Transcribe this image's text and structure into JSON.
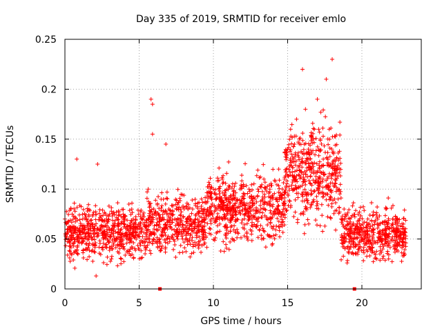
{
  "chart_data": {
    "type": "scatter",
    "title": "Day 335 of 2019, SRMTID for receiver emlo",
    "xlabel": "GPS time / hours",
    "ylabel": "SRMTID / TECUs",
    "xlim": [
      0,
      24
    ],
    "ylim": [
      0,
      0.25
    ],
    "xticks": [
      0,
      5,
      10,
      15,
      20
    ],
    "xtick_labels": [
      "0",
      "5",
      "10",
      "15",
      "20"
    ],
    "yticks": [
      0,
      0.05,
      0.1,
      0.15,
      0.2,
      0.25
    ],
    "ytick_labels": [
      "0",
      "0.05",
      "0.1",
      "0.15",
      "0.2",
      "0.25"
    ],
    "grid": true,
    "marker": "+",
    "color": "#ff0000",
    "series": [
      {
        "name": "SRMTID",
        "x": [
          0.0,
          0.2,
          0.4,
          0.5,
          0.6,
          0.8,
          1.0,
          1.2,
          1.4,
          1.6,
          1.8,
          2.0,
          2.1,
          2.2,
          2.4,
          2.6,
          2.8,
          3.0,
          3.2,
          3.4,
          3.6,
          3.8,
          4.0,
          4.2,
          4.4,
          4.6,
          4.8,
          5.0,
          5.2,
          5.4,
          5.6,
          5.8,
          5.9,
          5.9,
          6.0,
          6.2,
          6.4,
          6.6,
          6.8,
          6.9,
          7.0,
          7.2,
          7.4,
          7.6,
          7.8,
          8.0,
          8.2,
          8.4,
          8.6,
          8.8,
          9.0,
          9.2,
          9.4,
          9.6,
          9.8,
          10.0,
          10.2,
          10.4,
          10.6,
          10.8,
          11.0,
          11.2,
          11.4,
          11.6,
          11.8,
          12.0,
          12.2,
          12.4,
          12.6,
          12.8,
          13.0,
          13.2,
          13.4,
          13.6,
          13.8,
          14.0,
          14.2,
          14.4,
          14.6,
          14.8,
          15.0,
          15.2,
          15.4,
          15.6,
          15.8,
          16.0,
          16.2,
          16.4,
          16.6,
          16.8,
          17.0,
          17.2,
          17.4,
          17.6,
          17.8,
          18.0,
          18.2,
          18.4,
          18.6,
          18.8,
          19.0,
          19.2,
          19.4,
          19.6,
          19.8,
          20.0,
          20.2,
          20.4,
          20.6,
          20.8,
          21.0,
          21.2,
          21.4,
          21.6,
          21.8,
          22.0,
          22.2,
          22.4,
          22.6,
          22.8
        ],
        "y": [
          0.07,
          0.06,
          0.08,
          0.05,
          0.06,
          0.13,
          0.05,
          0.07,
          0.04,
          0.06,
          0.05,
          0.06,
          0.013,
          0.125,
          0.06,
          0.05,
          0.07,
          0.06,
          0.04,
          0.05,
          0.06,
          0.05,
          0.04,
          0.06,
          0.05,
          0.07,
          0.05,
          0.04,
          0.06,
          0.05,
          0.07,
          0.19,
          0.185,
          0.155,
          0.06,
          0.07,
          0.05,
          0.07,
          0.145,
          0.06,
          0.08,
          0.06,
          0.07,
          0.05,
          0.08,
          0.06,
          0.07,
          0.05,
          0.08,
          0.07,
          0.06,
          0.09,
          0.07,
          0.08,
          0.06,
          0.1,
          0.09,
          0.07,
          0.11,
          0.08,
          0.1,
          0.09,
          0.08,
          0.07,
          0.1,
          0.09,
          0.08,
          0.1,
          0.07,
          0.09,
          0.1,
          0.08,
          0.11,
          0.07,
          0.1,
          0.09,
          0.08,
          0.12,
          0.09,
          0.11,
          0.14,
          0.16,
          0.13,
          0.17,
          0.15,
          0.22,
          0.18,
          0.14,
          0.12,
          0.16,
          0.19,
          0.15,
          0.13,
          0.21,
          0.16,
          0.23,
          0.12,
          0.09,
          0.07,
          0.08,
          0.06,
          0.07,
          0.05,
          0.06,
          0.04,
          0.06,
          0.05,
          0.07,
          0.04,
          0.06,
          0.03,
          0.05,
          0.04,
          0.06,
          0.03,
          0.05,
          0.04,
          0.07,
          0.05,
          0.06
        ],
        "bands": [
          {
            "x_range": [
              0,
              5.5
            ],
            "y_mean": 0.057,
            "y_spread": 0.026,
            "count": 600
          },
          {
            "x_range": [
              5.5,
              9.5
            ],
            "y_mean": 0.065,
            "y_spread": 0.028,
            "count": 420
          },
          {
            "x_range": [
              9.5,
              14.8
            ],
            "y_mean": 0.08,
            "y_spread": 0.032,
            "count": 560
          },
          {
            "x_range": [
              14.8,
              18.6
            ],
            "y_mean": 0.115,
            "y_spread": 0.045,
            "count": 480
          },
          {
            "x_range": [
              18.6,
              23
            ],
            "y_mean": 0.055,
            "y_spread": 0.025,
            "count": 480
          }
        ],
        "x_axis_markers": [
          6.4,
          19.5
        ]
      }
    ]
  }
}
